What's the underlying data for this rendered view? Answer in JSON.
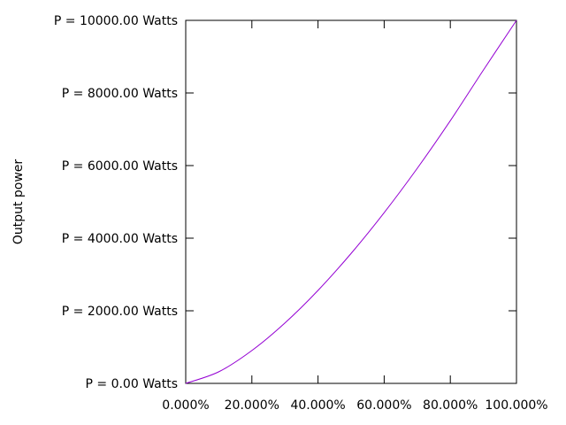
{
  "chart_data": {
    "type": "line",
    "title": "",
    "xlabel": "",
    "ylabel": "Output power",
    "xlim": [
      0,
      100
    ],
    "ylim": [
      0,
      10000
    ],
    "x_ticks": [
      0,
      20,
      40,
      60,
      80,
      100
    ],
    "y_ticks": [
      0,
      2000,
      4000,
      6000,
      8000,
      10000
    ],
    "x_tick_labels": [
      "0.000%",
      "20.000%",
      "40.000%",
      "60.000%",
      "80.000%",
      "100.000%"
    ],
    "y_tick_labels": [
      "P = 0.00 Watts",
      "P = 2000.00 Watts",
      "P = 4000.00 Watts",
      "P = 6000.00 Watts",
      "P = 8000.00 Watts",
      "P = 10000.00 Watts"
    ],
    "grid": false,
    "series": [
      {
        "color": "#9400d3",
        "x": [
          0,
          10,
          20,
          30,
          40,
          50,
          60,
          70,
          80,
          90,
          100
        ],
        "values": [
          0,
          320,
          905,
          1664,
          2561,
          3579,
          4703,
          5924,
          7236,
          8631,
          10000
        ]
      }
    ]
  }
}
